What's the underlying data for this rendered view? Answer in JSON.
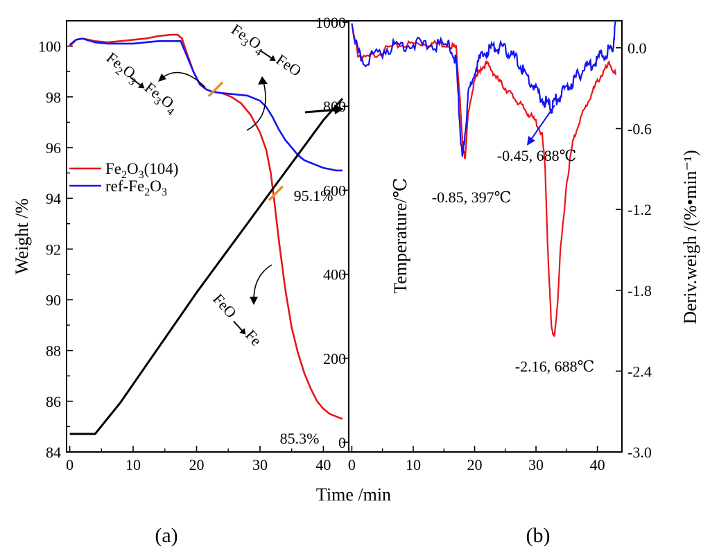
{
  "chart_data": [
    {
      "panel": "a",
      "type": "line",
      "xlabel": "Time /min",
      "ylabel": "Weight /%",
      "xlim": [
        -0.5,
        44
      ],
      "ylim": [
        84,
        101
      ],
      "x_ticks": [
        0,
        10,
        20,
        30,
        40
      ],
      "y_ticks": [
        84,
        86,
        88,
        90,
        92,
        94,
        96,
        98,
        100
      ],
      "legend": {
        "position": "middle-left",
        "entries": [
          "Fe2O3(104)",
          "ref-Fe2O3"
        ]
      },
      "series": [
        {
          "name": "Fe2O3(104)",
          "color": "#e8151b",
          "points": [
            [
              0,
              100.0
            ],
            [
              1,
              100.25
            ],
            [
              2,
              100.3
            ],
            [
              4,
              100.2
            ],
            [
              6,
              100.15
            ],
            [
              8,
              100.2
            ],
            [
              10,
              100.25
            ],
            [
              12,
              100.3
            ],
            [
              14,
              100.4
            ],
            [
              16,
              100.45
            ],
            [
              17,
              100.45
            ],
            [
              17.7,
              100.3
            ],
            [
              18.5,
              99.7
            ],
            [
              19.5,
              99.0
            ],
            [
              20.5,
              98.5
            ],
            [
              21.5,
              98.3
            ],
            [
              22.5,
              98.2
            ],
            [
              24,
              98.15
            ],
            [
              25.5,
              98.0
            ],
            [
              27,
              97.75
            ],
            [
              28.5,
              97.3
            ],
            [
              30,
              96.6
            ],
            [
              31,
              95.9
            ],
            [
              31.7,
              95.0
            ],
            [
              32.3,
              93.8
            ],
            [
              33,
              92.3
            ],
            [
              34,
              90.4
            ],
            [
              35,
              88.9
            ],
            [
              36,
              87.9
            ],
            [
              37,
              87.1
            ],
            [
              38,
              86.5
            ],
            [
              39,
              86.0
            ],
            [
              40,
              85.7
            ],
            [
              41,
              85.5
            ],
            [
              42,
              85.4
            ],
            [
              43,
              85.3
            ]
          ]
        },
        {
          "name": "ref-Fe2O3",
          "color": "#1515ee",
          "points": [
            [
              0,
              100.05
            ],
            [
              1,
              100.25
            ],
            [
              2,
              100.3
            ],
            [
              4,
              100.15
            ],
            [
              6,
              100.1
            ],
            [
              8,
              100.1
            ],
            [
              10,
              100.1
            ],
            [
              12,
              100.15
            ],
            [
              14,
              100.2
            ],
            [
              16,
              100.2
            ],
            [
              17.5,
              100.2
            ],
            [
              18.5,
              99.6
            ],
            [
              19.5,
              99.0
            ],
            [
              20.5,
              98.5
            ],
            [
              21.5,
              98.3
            ],
            [
              22.5,
              98.2
            ],
            [
              24,
              98.15
            ],
            [
              26,
              98.1
            ],
            [
              28,
              98.05
            ],
            [
              30,
              97.85
            ],
            [
              31,
              97.6
            ],
            [
              32,
              97.2
            ],
            [
              33,
              96.7
            ],
            [
              34,
              96.3
            ],
            [
              35,
              96.0
            ],
            [
              36,
              95.7
            ],
            [
              37,
              95.5
            ],
            [
              38,
              95.4
            ],
            [
              39,
              95.3
            ],
            [
              40,
              95.2
            ],
            [
              41,
              95.15
            ],
            [
              42,
              95.1
            ],
            [
              43,
              95.1
            ]
          ]
        },
        {
          "name": "",
          "color": "#000000",
          "axis": "temperature",
          "points": [
            [
              0,
              0
            ],
            [
              1,
              12
            ],
            [
              2,
              30
            ],
            [
              4,
              70
            ],
            [
              8,
              150
            ],
            [
              12,
              235
            ],
            [
              16,
              320
            ],
            [
              20,
              405
            ],
            [
              24,
              485
            ],
            [
              28,
              565
            ],
            [
              32,
              645
            ],
            [
              36,
              725
            ],
            [
              40,
              805
            ],
            [
              43,
              855
            ]
          ]
        }
      ],
      "annotations": [
        {
          "text": "95.1%",
          "x": 40.5,
          "y": 94.0
        },
        {
          "text": "85.3%",
          "x": 39.5,
          "y": 84.9
        },
        {
          "text": "Fe2O3 → Fe3O4",
          "x": 8.5,
          "y": 97.5
        },
        {
          "text": "Fe3O4 → FeO",
          "x": 31,
          "y": 99.4
        },
        {
          "text": "FeO → Fe",
          "x": 33.5,
          "y": 88.3
        }
      ],
      "markers": [
        {
          "color": "#f28c1e",
          "x": 23.0,
          "y": 98.3
        },
        {
          "color": "#f28c1e",
          "x": 32.5,
          "y": 94.2
        }
      ],
      "label": "(a)"
    },
    {
      "panel": "b",
      "type": "line",
      "xlabel": "Time /min",
      "ylabel_left": "Temperature/℃",
      "ylabel_right": "Deriv.weigh /(%•min⁻¹)",
      "xlim": [
        -0.5,
        44
      ],
      "ylim_left": [
        0,
        1000
      ],
      "ylim_right": [
        -3.0,
        0.2
      ],
      "x_ticks": [
        0,
        10,
        20,
        30,
        40
      ],
      "y_ticks_left": [
        0,
        200,
        400,
        600,
        800,
        1000
      ],
      "y_ticks_right": [
        -3.0,
        -2.4,
        -1.8,
        -1.2,
        -0.6,
        0.0
      ],
      "y_tick_labels_right": [
        "-3.0",
        "-2.4",
        "-1.8",
        "-1.2",
        "-0.6",
        "0.0"
      ],
      "series": [
        {
          "name": "Fe2O3(104)",
          "color": "#e8151b",
          "axis": "right",
          "points": [
            [
              0,
              0.15
            ],
            [
              1,
              -0.05
            ],
            [
              2,
              -0.08
            ],
            [
              4,
              -0.05
            ],
            [
              6,
              0.0
            ],
            [
              8,
              0.02
            ],
            [
              10,
              0.03
            ],
            [
              12,
              0.03
            ],
            [
              14,
              0.03
            ],
            [
              16,
              0.02
            ],
            [
              17,
              0.0
            ],
            [
              17.5,
              -0.3
            ],
            [
              18,
              -0.7
            ],
            [
              18.5,
              -0.82
            ],
            [
              19,
              -0.45
            ],
            [
              20,
              -0.25
            ],
            [
              21,
              -0.15
            ],
            [
              22,
              -0.12
            ],
            [
              23,
              -0.18
            ],
            [
              24,
              -0.25
            ],
            [
              25,
              -0.3
            ],
            [
              26,
              -0.35
            ],
            [
              27,
              -0.4
            ],
            [
              28,
              -0.45
            ],
            [
              29,
              -0.5
            ],
            [
              30,
              -0.55
            ],
            [
              31,
              -0.65
            ],
            [
              31.5,
              -0.9
            ],
            [
              32,
              -1.6
            ],
            [
              32.5,
              -2.05
            ],
            [
              33,
              -2.16
            ],
            [
              33.5,
              -1.9
            ],
            [
              34,
              -1.5
            ],
            [
              35,
              -1.0
            ],
            [
              36,
              -0.7
            ],
            [
              37,
              -0.55
            ],
            [
              38,
              -0.45
            ],
            [
              39,
              -0.35
            ],
            [
              40,
              -0.25
            ],
            [
              41,
              -0.18
            ],
            [
              42,
              -0.12
            ],
            [
              43,
              -0.2
            ]
          ]
        },
        {
          "name": "ref-Fe2O3",
          "color": "#1515ee",
          "axis": "right",
          "points": [
            [
              0,
              0.2
            ],
            [
              1,
              -0.05
            ],
            [
              2,
              -0.1
            ],
            [
              4,
              -0.05
            ],
            [
              6,
              0.0
            ],
            [
              8,
              0.02
            ],
            [
              10,
              0.03
            ],
            [
              12,
              0.02
            ],
            [
              14,
              0.02
            ],
            [
              16,
              0.01
            ],
            [
              17,
              -0.1
            ],
            [
              17.5,
              -0.5
            ],
            [
              18,
              -0.85
            ],
            [
              18.5,
              -0.6
            ],
            [
              19,
              -0.35
            ],
            [
              20,
              -0.15
            ],
            [
              21,
              -0.08
            ],
            [
              22,
              -0.02
            ],
            [
              23,
              0.0
            ],
            [
              24,
              0.0
            ],
            [
              25,
              -0.02
            ],
            [
              26,
              -0.05
            ],
            [
              27,
              -0.1
            ],
            [
              28,
              -0.18
            ],
            [
              29,
              -0.25
            ],
            [
              30,
              -0.32
            ],
            [
              31,
              -0.38
            ],
            [
              32,
              -0.42
            ],
            [
              32.5,
              -0.45
            ],
            [
              33,
              -0.4
            ],
            [
              34,
              -0.35
            ],
            [
              35,
              -0.3
            ],
            [
              36,
              -0.25
            ],
            [
              37,
              -0.2
            ],
            [
              38,
              -0.15
            ],
            [
              39,
              -0.12
            ],
            [
              40,
              -0.08
            ],
            [
              41,
              -0.05
            ],
            [
              42,
              -0.02
            ],
            [
              42.5,
              0.0
            ],
            [
              43,
              0.2
            ]
          ]
        }
      ],
      "annotations": [
        {
          "text": "-0.85, 397℃",
          "x": 10,
          "y": -1.1
        },
        {
          "text": "-0.45, 688℃",
          "x": 34,
          "y": -0.75
        },
        {
          "text": "-2.16, 688℃",
          "x": 32,
          "y": -2.45
        }
      ],
      "label": "(b)"
    }
  ]
}
